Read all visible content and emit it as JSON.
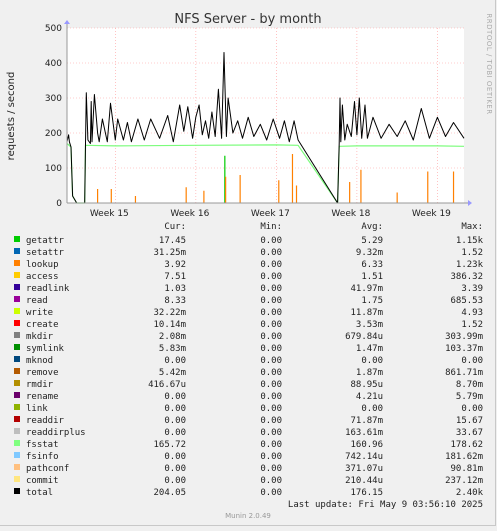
{
  "chart_data": {
    "type": "line",
    "title": "NFS Server - by month",
    "ylabel": "requests / second",
    "side_label": "RRDTOOL / TOBI OETIKER",
    "ylim": [
      0,
      500
    ],
    "yticks": [
      0,
      100,
      200,
      300,
      400,
      500
    ],
    "xlim": [
      14.4,
      19.33
    ],
    "xticks": [
      {
        "label": "Week 15",
        "pos": 15
      },
      {
        "label": "Week 16",
        "pos": 16
      },
      {
        "label": "Week 17",
        "pos": 17
      },
      {
        "label": "Week 18",
        "pos": 18
      },
      {
        "label": "Week 19",
        "pos": 19
      }
    ],
    "grid": true,
    "gap": [
      17.27,
      17.76
    ],
    "total_series": {
      "name": "total",
      "color": "#000000",
      "x": [
        14.4,
        14.42,
        14.43,
        14.45,
        14.47,
        14.52,
        14.62,
        14.63,
        14.64,
        14.66,
        14.69,
        14.7,
        14.71,
        14.74,
        14.78,
        14.8,
        14.84,
        14.9,
        14.94,
        15.0,
        15.03,
        15.1,
        15.15,
        15.2,
        15.28,
        15.36,
        15.44,
        15.55,
        15.65,
        15.72,
        15.8,
        15.85,
        15.9,
        15.96,
        16.0,
        16.04,
        16.08,
        16.12,
        16.16,
        16.2,
        16.24,
        16.28,
        16.32,
        16.35,
        16.38,
        16.4,
        16.46,
        16.52,
        16.58,
        16.65,
        16.72,
        16.8,
        16.88,
        16.96,
        17.04,
        17.1,
        17.16,
        17.22,
        17.27,
        17.76,
        17.78,
        17.79,
        17.8,
        17.82,
        17.85,
        17.88,
        17.93,
        17.97,
        18.0,
        18.03,
        18.06,
        18.1,
        18.13,
        18.2,
        18.3,
        18.4,
        18.5,
        18.6,
        18.7,
        18.8,
        18.9,
        19.0,
        19.1,
        19.2,
        19.33
      ],
      "y": [
        175,
        195,
        175,
        160,
        20,
        0,
        0,
        170,
        315,
        180,
        170,
        290,
        175,
        310,
        200,
        175,
        240,
        175,
        285,
        180,
        240,
        180,
        230,
        175,
        240,
        180,
        240,
        185,
        250,
        175,
        280,
        205,
        275,
        185,
        245,
        280,
        195,
        235,
        185,
        260,
        190,
        325,
        185,
        430,
        190,
        300,
        200,
        235,
        185,
        245,
        190,
        225,
        180,
        240,
        185,
        235,
        175,
        235,
        180,
        0,
        170,
        300,
        175,
        280,
        180,
        225,
        190,
        290,
        195,
        300,
        185,
        280,
        185,
        245,
        185,
        225,
        190,
        235,
        180,
        270,
        185,
        245,
        190,
        230,
        185
      ]
    },
    "fsstat_series": {
      "name": "fsstat",
      "color": "#7cfc7c",
      "x": [
        14.4,
        14.45,
        14.47,
        14.52,
        14.62,
        14.63,
        15.0,
        16.0,
        17.0,
        17.27,
        17.76,
        17.78,
        18.0,
        19.0,
        19.33
      ],
      "y": [
        170,
        160,
        20,
        0,
        0,
        165,
        163,
        165,
        166,
        165,
        0,
        162,
        163,
        163,
        162
      ]
    },
    "spikes": [
      {
        "x": 14.78,
        "y": 40,
        "color": "#ff8000"
      },
      {
        "x": 14.95,
        "y": 40,
        "color": "#ff8000"
      },
      {
        "x": 15.25,
        "y": 20,
        "color": "#ff8000"
      },
      {
        "x": 15.88,
        "y": 45,
        "color": "#ff8000"
      },
      {
        "x": 16.1,
        "y": 35,
        "color": "#ff8000"
      },
      {
        "x": 16.36,
        "y": 135,
        "color": "#00cc00"
      },
      {
        "x": 16.37,
        "y": 75,
        "color": "#ff8000"
      },
      {
        "x": 16.55,
        "y": 80,
        "color": "#ff8000"
      },
      {
        "x": 17.03,
        "y": 65,
        "color": "#ff8000"
      },
      {
        "x": 17.2,
        "y": 140,
        "color": "#ff8000"
      },
      {
        "x": 17.25,
        "y": 50,
        "color": "#ff8000"
      },
      {
        "x": 17.91,
        "y": 60,
        "color": "#ff8000"
      },
      {
        "x": 18.05,
        "y": 95,
        "color": "#ff8000"
      },
      {
        "x": 18.5,
        "y": 30,
        "color": "#ff8000"
      },
      {
        "x": 18.88,
        "y": 90,
        "color": "#ff8000"
      },
      {
        "x": 19.2,
        "y": 90,
        "color": "#ff8000"
      }
    ],
    "legend_header": {
      "cur": "Cur:",
      "min": "Min:",
      "avg": "Avg:",
      "max": "Max:"
    },
    "legend": [
      {
        "name": "getattr",
        "color": "#00cc00",
        "cur": "17.45",
        "min": "0.00",
        "avg": "5.29",
        "max": "1.15k"
      },
      {
        "name": "setattr",
        "color": "#0066b3",
        "cur": "31.25m",
        "min": "0.00",
        "avg": "9.32m",
        "max": "1.52"
      },
      {
        "name": "lookup",
        "color": "#ff8000",
        "cur": "3.92",
        "min": "0.00",
        "avg": "6.33",
        "max": "1.23k"
      },
      {
        "name": "access",
        "color": "#ffcc00",
        "cur": "7.51",
        "min": "0.00",
        "avg": "1.51",
        "max": "386.32"
      },
      {
        "name": "readlink",
        "color": "#330099",
        "cur": "1.03",
        "min": "0.00",
        "avg": "41.97m",
        "max": "3.39"
      },
      {
        "name": "read",
        "color": "#990099",
        "cur": "8.33",
        "min": "0.00",
        "avg": "1.75",
        "max": "685.53"
      },
      {
        "name": "write",
        "color": "#ccff00",
        "cur": "32.22m",
        "min": "0.00",
        "avg": "11.87m",
        "max": "4.93"
      },
      {
        "name": "create",
        "color": "#ff0000",
        "cur": "10.14m",
        "min": "0.00",
        "avg": "3.53m",
        "max": "1.52"
      },
      {
        "name": "mkdir",
        "color": "#808080",
        "cur": "2.08m",
        "min": "0.00",
        "avg": "679.84u",
        "max": "303.99m"
      },
      {
        "name": "symlink",
        "color": "#008f00",
        "cur": "5.83m",
        "min": "0.00",
        "avg": "1.47m",
        "max": "103.37m"
      },
      {
        "name": "mknod",
        "color": "#00487d",
        "cur": "0.00",
        "min": "0.00",
        "avg": "0.00",
        "max": "0.00"
      },
      {
        "name": "remove",
        "color": "#b35a00",
        "cur": "5.42m",
        "min": "0.00",
        "avg": "1.87m",
        "max": "861.71m"
      },
      {
        "name": "rmdir",
        "color": "#b38f00",
        "cur": "416.67u",
        "min": "0.00",
        "avg": "88.95u",
        "max": "8.70m"
      },
      {
        "name": "rename",
        "color": "#6b006b",
        "cur": "0.00",
        "min": "0.00",
        "avg": "4.21u",
        "max": "5.79m"
      },
      {
        "name": "link",
        "color": "#8fb300",
        "cur": "0.00",
        "min": "0.00",
        "avg": "0.00",
        "max": "0.00"
      },
      {
        "name": "readdir",
        "color": "#b30000",
        "cur": "0.00",
        "min": "0.00",
        "avg": "71.87m",
        "max": "15.67"
      },
      {
        "name": "readdirplus",
        "color": "#bebebe",
        "cur": "0.00",
        "min": "0.00",
        "avg": "163.61m",
        "max": "33.67"
      },
      {
        "name": "fsstat",
        "color": "#80ff80",
        "cur": "165.72",
        "min": "0.00",
        "avg": "160.96",
        "max": "178.62"
      },
      {
        "name": "fsinfo",
        "color": "#80c9ff",
        "cur": "0.00",
        "min": "0.00",
        "avg": "742.14u",
        "max": "181.62m"
      },
      {
        "name": "pathconf",
        "color": "#ffc080",
        "cur": "0.00",
        "min": "0.00",
        "avg": "371.07u",
        "max": "90.81m"
      },
      {
        "name": "commit",
        "color": "#ffe680",
        "cur": "0.00",
        "min": "0.00",
        "avg": "210.44u",
        "max": "237.12m"
      },
      {
        "name": "total",
        "color": "#000000",
        "cur": "204.05",
        "min": "0.00",
        "avg": "176.15",
        "max": "2.40k"
      }
    ],
    "last_update": "Last update: Fri May  9 03:56:10 2025",
    "footer": "Munin 2.0.49"
  }
}
